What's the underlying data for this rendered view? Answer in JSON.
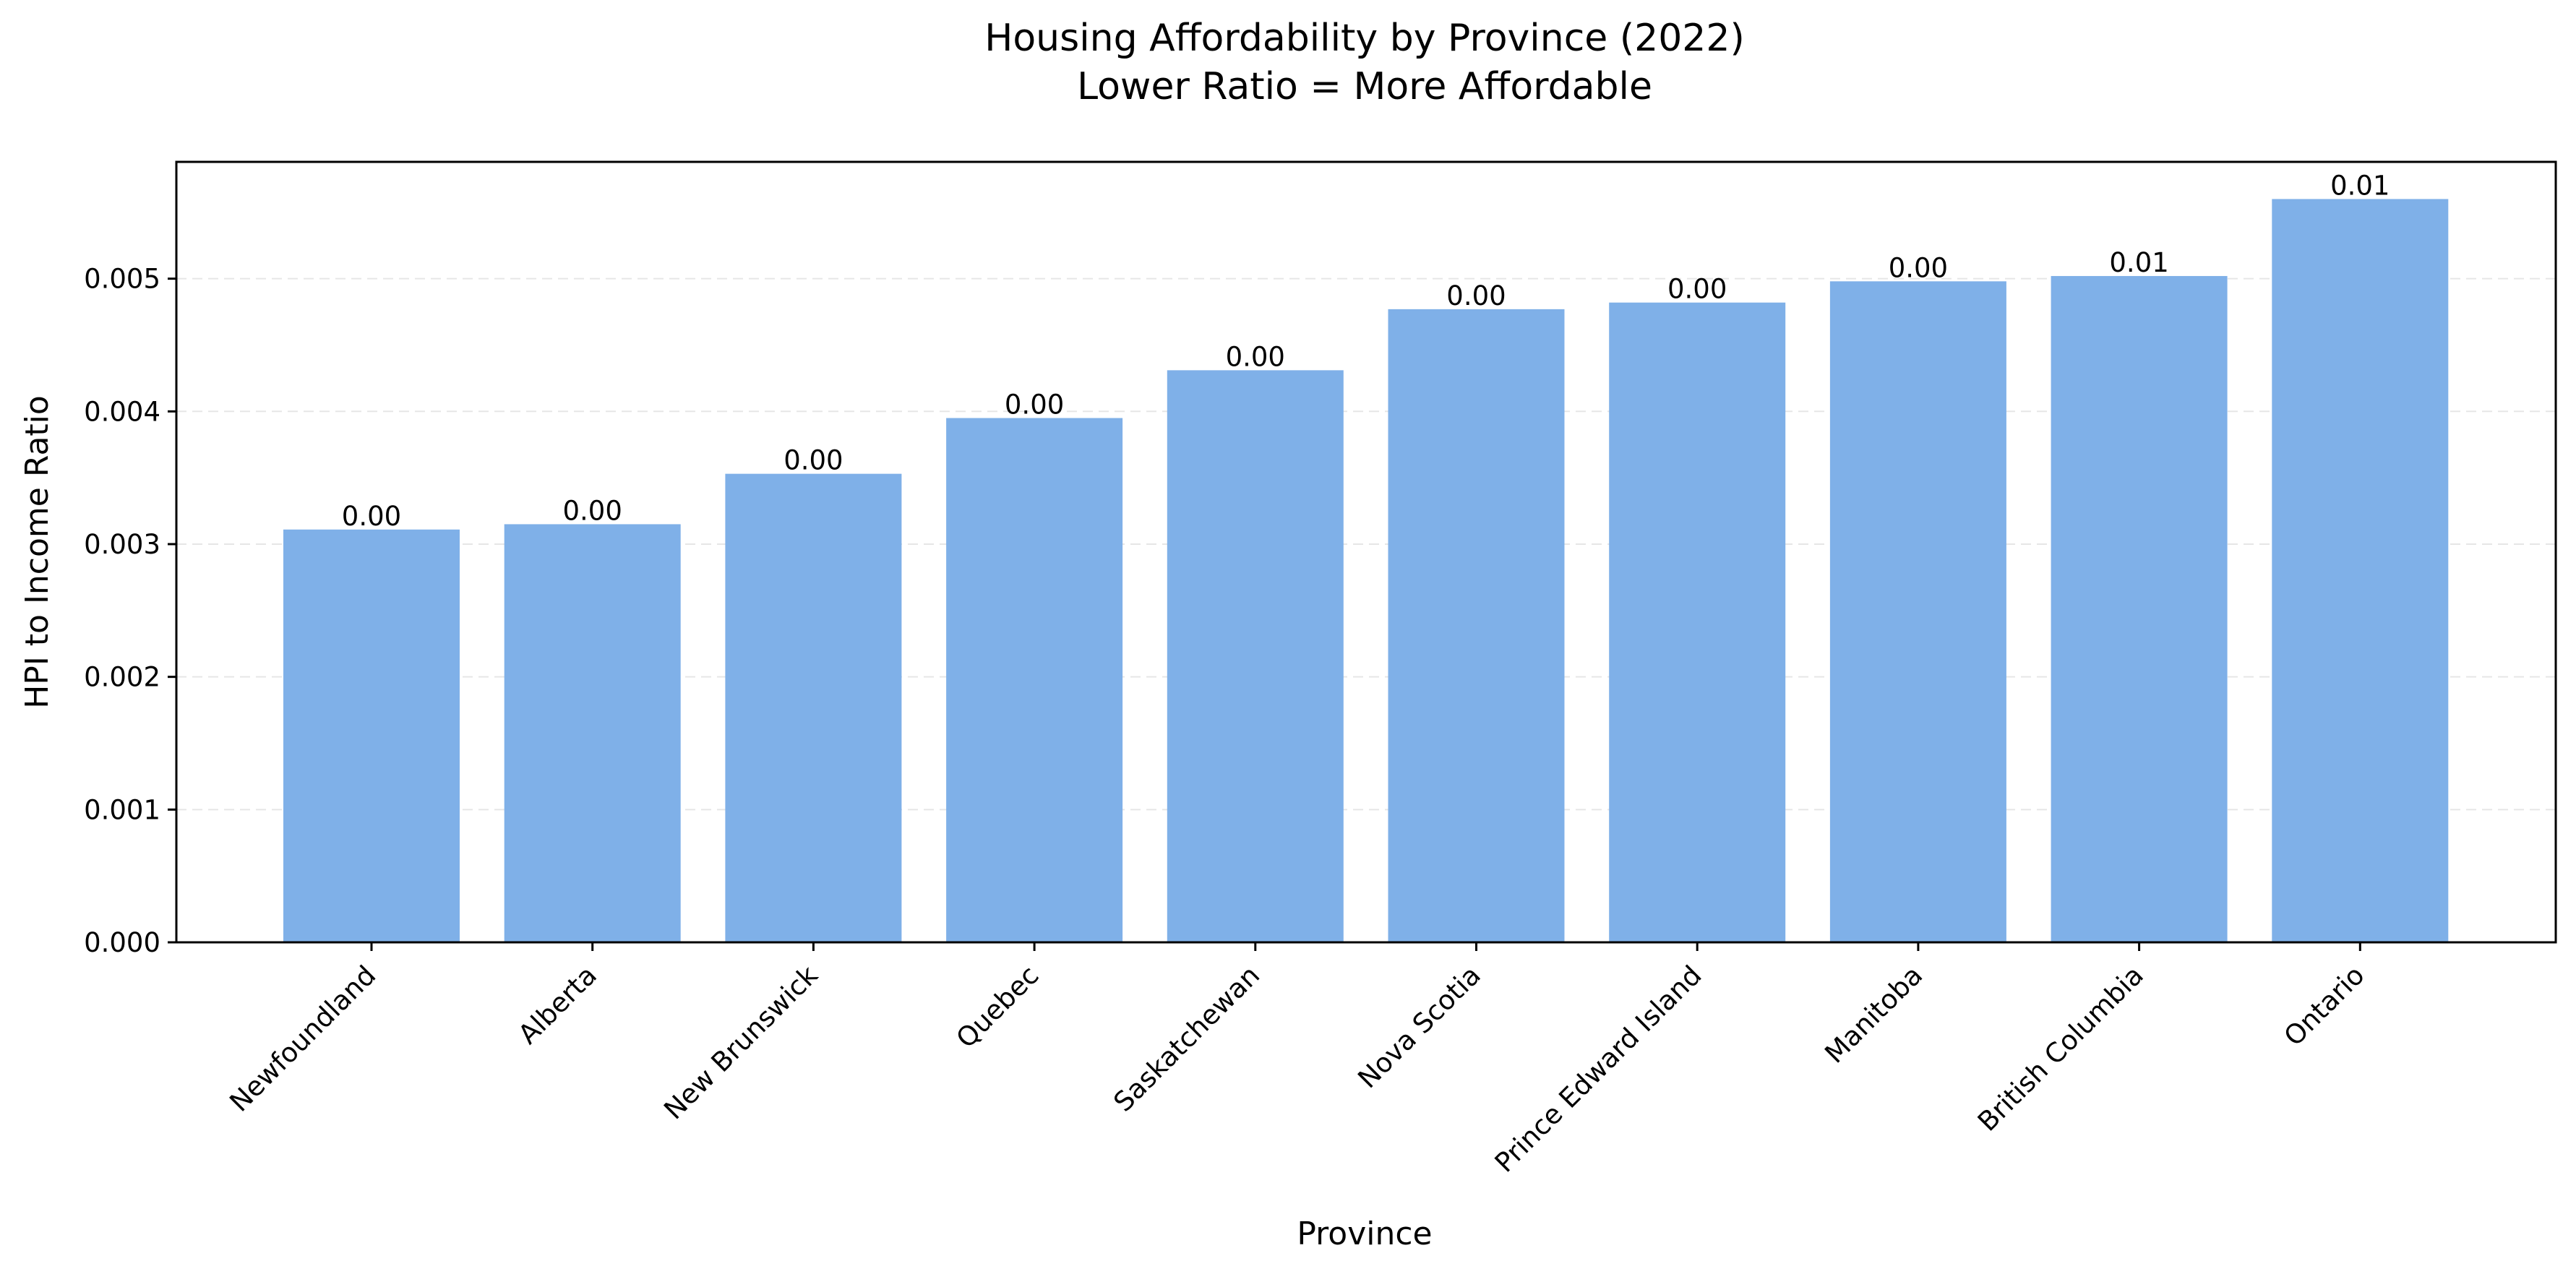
{
  "chart_data": {
    "type": "bar",
    "title": "Housing Affordability by Province (2022)",
    "subtitle": "Lower Ratio = More Affordable",
    "xlabel": "Province",
    "ylabel": "HPI to Income Ratio",
    "categories": [
      "Newfoundland",
      "Alberta",
      "New Brunswick",
      "Quebec",
      "Saskatchewan",
      "Nova Scotia",
      "Prince Edward Island",
      "Manitoba",
      "British Columbia",
      "Ontario"
    ],
    "values": [
      0.00311,
      0.00315,
      0.00353,
      0.00395,
      0.00431,
      0.00477,
      0.00482,
      0.00498,
      0.00502,
      0.0056
    ],
    "data_labels": [
      "0.00",
      "0.00",
      "0.00",
      "0.00",
      "0.00",
      "0.00",
      "0.00",
      "0.00",
      "0.01",
      "0.01"
    ],
    "ylim": [
      0,
      0.00588
    ],
    "yticks": [
      0,
      0.001,
      0.002,
      0.003,
      0.004,
      0.005
    ],
    "ytick_labels": [
      "0.000",
      "0.001",
      "0.002",
      "0.003",
      "0.004",
      "0.005"
    ],
    "grid": "y-dashed",
    "legend": "none",
    "bar_color": "#7fb0e8"
  }
}
